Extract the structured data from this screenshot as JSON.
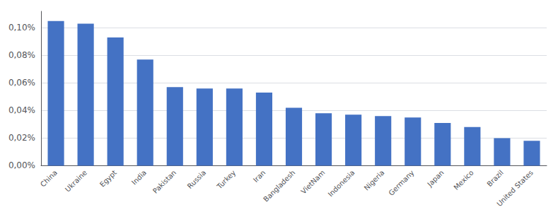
{
  "chart_data": {
    "type": "bar",
    "categories": [
      "China",
      "Ukraine",
      "Egypt",
      "India",
      "Pakistan",
      "Russia",
      "Turkey",
      "Iran",
      "Bangladesh",
      "VietNam",
      "Indonesia",
      "Nigeria",
      "Germany",
      "Japan",
      "Mexico",
      "Brazil",
      "United States"
    ],
    "values": [
      0.00105,
      0.00103,
      0.00093,
      0.00077,
      0.00057,
      0.00056,
      0.00056,
      0.00053,
      0.00042,
      0.00038,
      0.00037,
      0.00036,
      0.00035,
      0.00031,
      0.00028,
      0.0002,
      0.00018
    ],
    "color": "#4472c4",
    "ylim": [
      0,
      0.00112
    ],
    "yticks": [
      {
        "value": 0,
        "label": "0,00%"
      },
      {
        "value": 0.0002,
        "label": "0,02%"
      },
      {
        "value": 0.0004,
        "label": "0,04%"
      },
      {
        "value": 0.0006,
        "label": "0,06%"
      },
      {
        "value": 0.0008,
        "label": "0,08%"
      },
      {
        "value": 0.001,
        "label": "0,10%"
      }
    ],
    "grid": true
  }
}
